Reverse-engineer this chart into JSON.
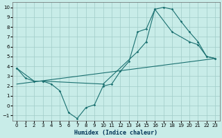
{
  "xlabel": "Humidex (Indice chaleur)",
  "bg_color": "#c8ece8",
  "grid_color": "#a0ccc8",
  "line_color": "#1a7070",
  "line1_x": [
    0,
    1,
    2,
    3,
    4,
    5,
    6,
    7,
    8,
    9,
    10,
    11,
    12,
    13,
    14,
    15,
    16,
    17,
    18,
    19,
    20,
    21,
    22,
    23
  ],
  "line1_y": [
    3.8,
    2.8,
    2.5,
    2.5,
    2.2,
    1.5,
    -0.7,
    -1.3,
    -0.2,
    0.1,
    2.0,
    2.2,
    3.5,
    4.5,
    7.5,
    7.8,
    9.8,
    10.0,
    9.8,
    8.6,
    7.5,
    6.5,
    5.0,
    4.8
  ],
  "line2_x": [
    0,
    2,
    3,
    10,
    14,
    15,
    16,
    18,
    20,
    21,
    22,
    23
  ],
  "line2_y": [
    3.8,
    2.5,
    2.5,
    2.2,
    5.5,
    6.5,
    9.8,
    7.5,
    6.5,
    6.2,
    5.0,
    4.8
  ],
  "line3_x": [
    0,
    23
  ],
  "line3_y": [
    2.2,
    4.8
  ],
  "xlim": [
    -0.5,
    23.5
  ],
  "ylim": [
    -1.5,
    10.5
  ],
  "xticks": [
    0,
    1,
    2,
    3,
    4,
    5,
    6,
    7,
    8,
    9,
    10,
    11,
    12,
    13,
    14,
    15,
    16,
    17,
    18,
    19,
    20,
    21,
    22,
    23
  ],
  "yticks": [
    -1,
    0,
    1,
    2,
    3,
    4,
    5,
    6,
    7,
    8,
    9,
    10
  ]
}
